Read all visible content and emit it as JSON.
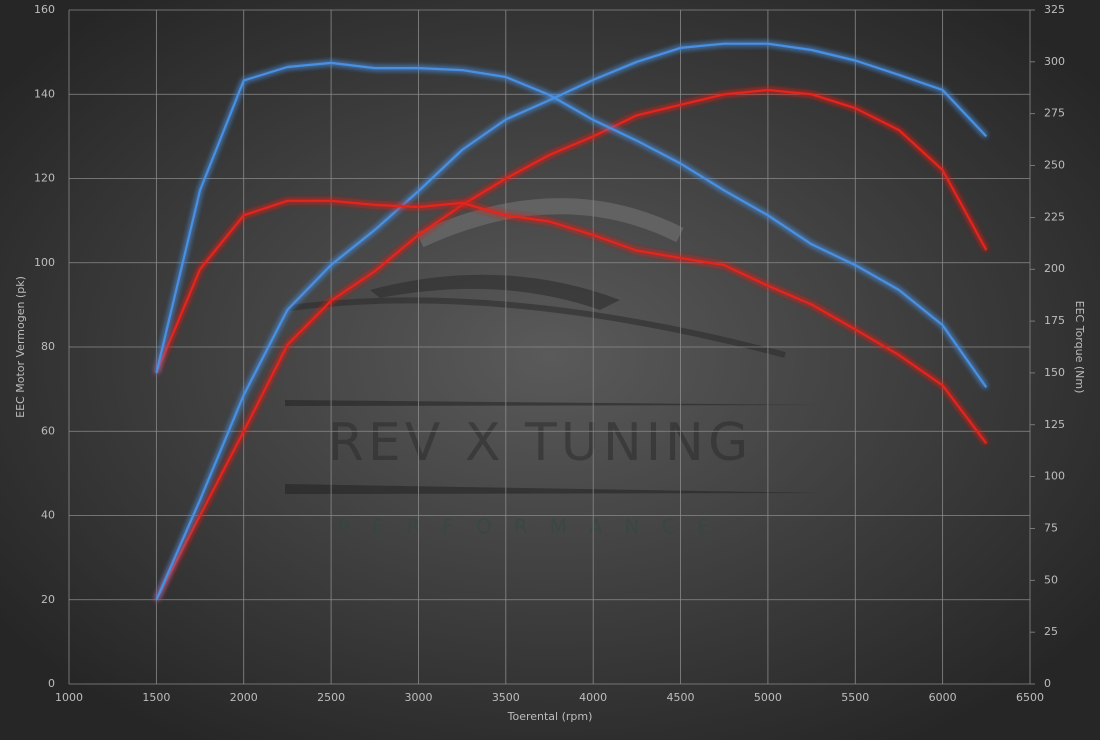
{
  "chart_data": {
    "type": "line",
    "x_label": "Toerental (rpm)",
    "y_label": "EEC Motor Vermogen (pk)",
    "y2_label": "EEC Torque (Nm)",
    "watermark": "REV X TUNING",
    "watermark_subtitle": "PERFORMANCE",
    "x": [
      1500,
      1750,
      2000,
      2250,
      2500,
      2750,
      3000,
      3250,
      3500,
      3750,
      4000,
      4250,
      4500,
      4750,
      5000,
      5250,
      5500,
      5750,
      6000,
      6250
    ],
    "xlim": [
      1000,
      6500
    ],
    "xticks": [
      1000,
      1500,
      2000,
      2500,
      3000,
      3500,
      4000,
      4500,
      5000,
      5500,
      6000,
      6500
    ],
    "ylim": [
      0,
      160
    ],
    "yticks": [
      0,
      20,
      40,
      60,
      80,
      100,
      120,
      140,
      160
    ],
    "y2lim": [
      0,
      325
    ],
    "y2ticks": [
      0,
      25,
      50,
      75,
      100,
      125,
      150,
      175,
      200,
      225,
      250,
      275,
      300,
      325
    ],
    "grid": true,
    "series": [
      {
        "color": "#e3261f",
        "values": [
          20,
          40,
          60,
          80.5,
          91,
          98,
          106.6,
          113.7,
          120,
          125.6,
          130,
          135,
          137.5,
          140,
          141,
          140,
          136.7,
          131.5,
          122,
          103
        ]
      },
      {
        "color": "#4a90e2",
        "values": [
          20,
          43.7,
          68.6,
          88.8,
          99.5,
          107.8,
          117,
          126.8,
          134,
          138.6,
          143.4,
          147.7,
          151,
          152,
          152,
          150.5,
          148,
          144.6,
          141,
          130
        ]
      },
      {
        "color": "#e3261f",
        "axis": "y2",
        "values": [
          150,
          200,
          226,
          233,
          233,
          231,
          230,
          232,
          226,
          223,
          216.5,
          209,
          205.4,
          202,
          192,
          183,
          171,
          158.6,
          144,
          116
        ]
      },
      {
        "color": "#4a90e2",
        "axis": "y2",
        "values": [
          150,
          238,
          291,
          297.5,
          299.5,
          297,
          297,
          296,
          292.7,
          284,
          272,
          262,
          251,
          238,
          226,
          212,
          202,
          190,
          173,
          143
        ]
      }
    ]
  }
}
